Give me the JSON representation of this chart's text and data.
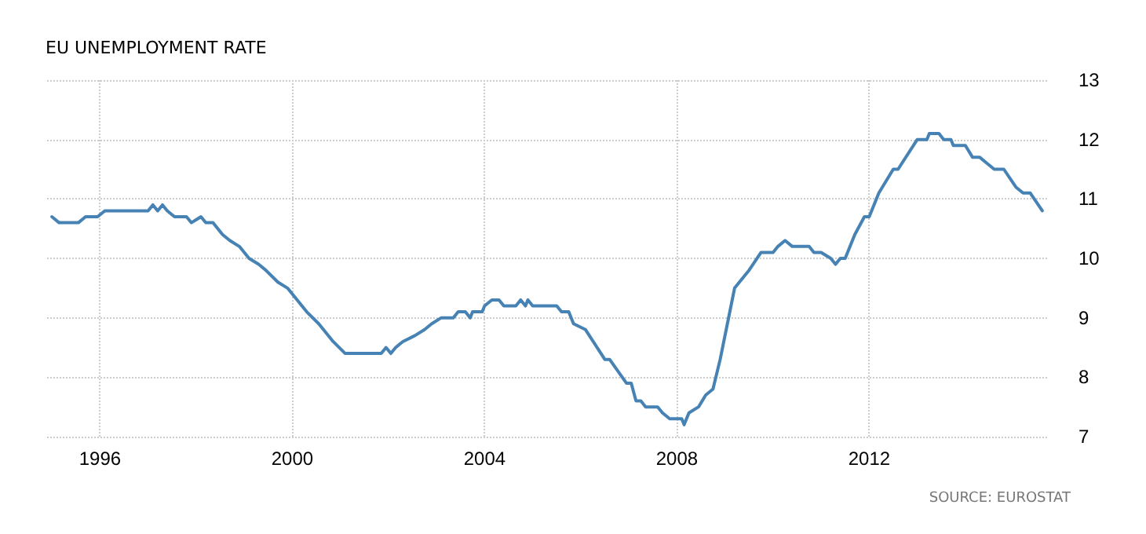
{
  "chart_data": {
    "type": "line",
    "title": "EU UNEMPLOYMENT RATE",
    "annotations": [
      "SOURCE: EUROSTAT"
    ],
    "x": [
      1995.0,
      1995.15,
      1995.55,
      1995.7,
      1995.95,
      1996.1,
      1997.0,
      1997.1,
      1997.2,
      1997.3,
      1997.4,
      1997.55,
      1997.8,
      1997.9,
      1998.1,
      1998.2,
      1998.35,
      1998.55,
      1998.7,
      1998.9,
      1999.1,
      1999.3,
      1999.45,
      1999.7,
      1999.9,
      2000.3,
      2000.55,
      2000.85,
      2001.1,
      2001.85,
      2001.95,
      2002.05,
      2002.15,
      2002.3,
      2002.55,
      2002.75,
      2002.9,
      2003.1,
      2003.35,
      2003.45,
      2003.6,
      2003.7,
      2003.75,
      2003.95,
      2004.0,
      2004.15,
      2004.3,
      2004.4,
      2004.65,
      2004.75,
      2004.85,
      2004.9,
      2005.0,
      2005.5,
      2005.6,
      2005.75,
      2005.85,
      2006.1,
      2006.5,
      2006.6,
      2006.95,
      2007.05,
      2007.15,
      2007.25,
      2007.35,
      2007.6,
      2007.7,
      2007.85,
      2008.1,
      2008.15,
      2008.25,
      2008.45,
      2008.6,
      2008.75,
      2008.9,
      2009.05,
      2009.2,
      2009.5,
      2009.75,
      2010.0,
      2010.1,
      2010.25,
      2010.4,
      2010.75,
      2010.85,
      2011.0,
      2011.2,
      2011.3,
      2011.4,
      2011.5,
      2011.7,
      2011.9,
      2012.0,
      2012.2,
      2012.5,
      2012.6,
      2013.0,
      2013.2,
      2013.25,
      2013.45,
      2013.55,
      2013.7,
      2013.75,
      2014.0,
      2014.15,
      2014.3,
      2014.45,
      2014.6,
      2014.8,
      2015.05,
      2015.2,
      2015.35,
      2015.6
    ],
    "series": [
      {
        "color": "#4682b4",
        "values": [
          10.7,
          10.6,
          10.6,
          10.7,
          10.7,
          10.8,
          10.8,
          10.9,
          10.8,
          10.9,
          10.8,
          10.7,
          10.7,
          10.6,
          10.7,
          10.6,
          10.6,
          10.4,
          10.3,
          10.2,
          10.0,
          9.9,
          9.8,
          9.6,
          9.5,
          9.1,
          8.9,
          8.6,
          8.4,
          8.4,
          8.5,
          8.4,
          8.5,
          8.6,
          8.7,
          8.8,
          8.9,
          9.0,
          9.0,
          9.1,
          9.1,
          9.0,
          9.1,
          9.1,
          9.2,
          9.3,
          9.3,
          9.2,
          9.2,
          9.3,
          9.2,
          9.3,
          9.2,
          9.2,
          9.1,
          9.1,
          8.9,
          8.8,
          8.3,
          8.3,
          7.9,
          7.9,
          7.6,
          7.6,
          7.5,
          7.5,
          7.4,
          7.3,
          7.3,
          7.2,
          7.4,
          7.5,
          7.7,
          7.8,
          8.3,
          8.9,
          9.5,
          9.8,
          10.1,
          10.1,
          10.2,
          10.3,
          10.2,
          10.2,
          10.1,
          10.1,
          10.0,
          9.9,
          10.0,
          10.0,
          10.4,
          10.7,
          10.7,
          11.1,
          11.5,
          11.5,
          12.0,
          12.0,
          12.1,
          12.1,
          12.0,
          12.0,
          11.9,
          11.9,
          11.7,
          11.7,
          11.6,
          11.5,
          11.5,
          11.2,
          11.1,
          11.1,
          10.8
        ]
      }
    ],
    "xlim": [
      1994.9,
      2015.7
    ],
    "xticks": [
      1996,
      2000,
      2004,
      2008,
      2012
    ],
    "ylim": [
      7,
      13
    ],
    "yticks": [
      7,
      8,
      9,
      10,
      11,
      12,
      13
    ],
    "grid": true,
    "marker": "none",
    "line_style": "solid"
  }
}
